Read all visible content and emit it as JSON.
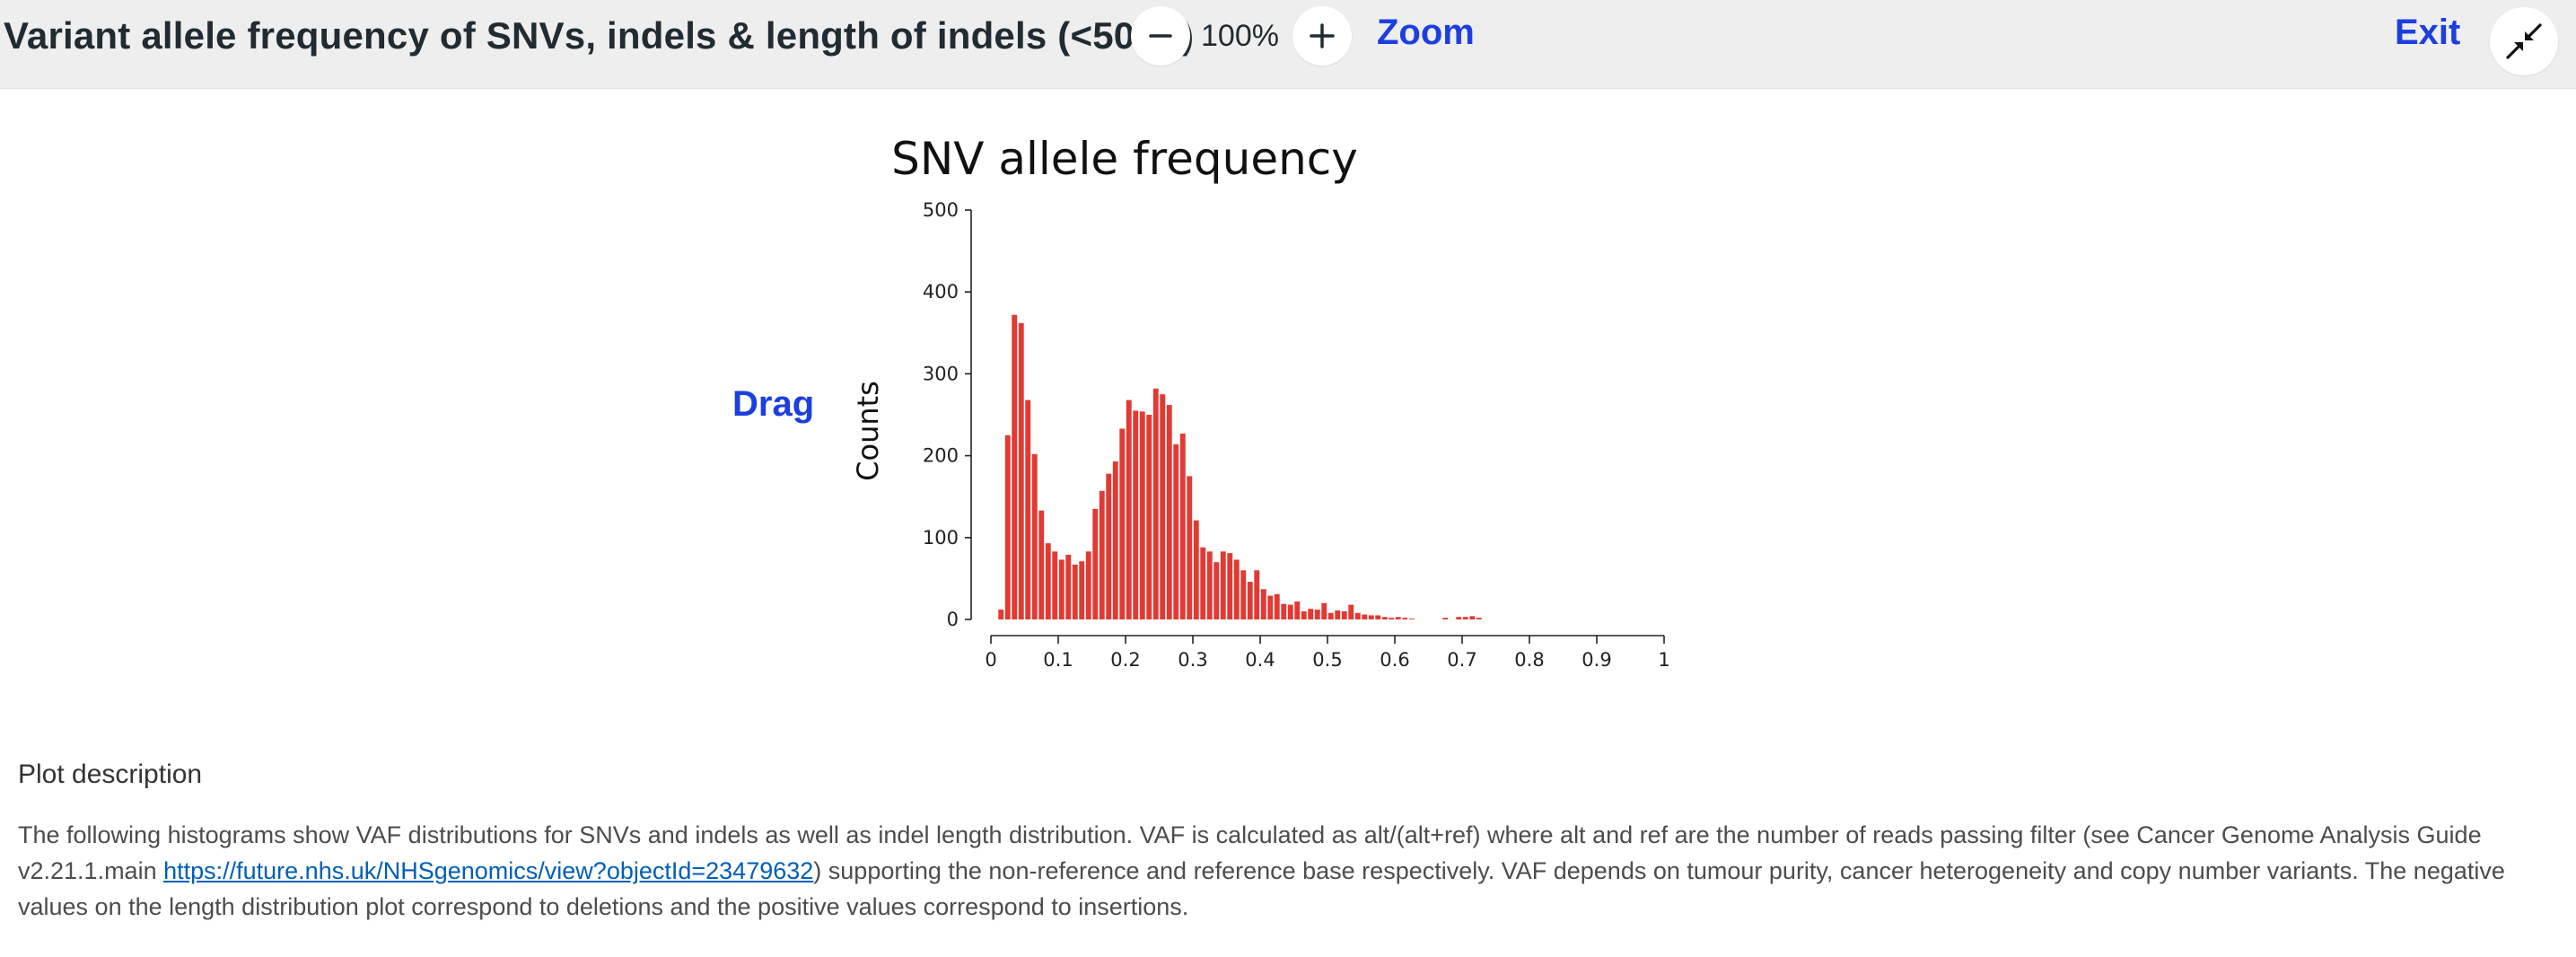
{
  "header": {
    "title": "Variant allele frequency of SNVs, indels & length of indels (<50bp)",
    "zoom_level": "100%",
    "zoom_label": "Zoom",
    "exit_label": "Exit",
    "zoom_out_icon": "minus-icon",
    "zoom_in_icon": "plus-icon",
    "exit_icon": "collapse-arrows-icon"
  },
  "drag_label": "Drag",
  "colors": {
    "accent": "#1d3fe0",
    "bar": "#e03a33",
    "topbar": "#eeeeee"
  },
  "chart_data": {
    "type": "bar",
    "title": "SNV allele frequency",
    "ylabel": "Counts",
    "xlabel": "",
    "xlim": [
      0,
      1
    ],
    "ylim": [
      0,
      500
    ],
    "xticks": [
      "0",
      "0.1",
      "0.2",
      "0.3",
      "0.4",
      "0.5",
      "0.6",
      "0.7",
      "0.8",
      "0.9",
      "1"
    ],
    "yticks": [
      "0",
      "100",
      "200",
      "300",
      "400",
      "500"
    ],
    "bin_width": 0.01,
    "x": [
      0.02,
      0.03,
      0.04,
      0.05,
      0.06,
      0.07,
      0.08,
      0.09,
      0.1,
      0.11,
      0.12,
      0.13,
      0.14,
      0.15,
      0.16,
      0.17,
      0.18,
      0.19,
      0.2,
      0.21,
      0.22,
      0.23,
      0.24,
      0.25,
      0.26,
      0.27,
      0.28,
      0.29,
      0.3,
      0.31,
      0.32,
      0.33,
      0.34,
      0.35,
      0.36,
      0.37,
      0.38,
      0.39,
      0.4,
      0.41,
      0.42,
      0.43,
      0.44,
      0.45,
      0.46,
      0.47,
      0.48,
      0.49,
      0.5,
      0.51,
      0.52,
      0.53,
      0.54,
      0.55,
      0.56,
      0.57,
      0.58,
      0.59,
      0.6,
      0.61,
      0.62,
      0.63,
      0.68,
      0.7,
      0.71,
      0.72,
      0.73
    ],
    "values": [
      12,
      225,
      372,
      362,
      268,
      202,
      133,
      93,
      83,
      73,
      79,
      67,
      71,
      83,
      135,
      157,
      178,
      193,
      233,
      268,
      255,
      254,
      250,
      282,
      275,
      262,
      214,
      227,
      175,
      121,
      88,
      83,
      70,
      83,
      81,
      73,
      60,
      46,
      60,
      37,
      29,
      31,
      19,
      18,
      22,
      10,
      13,
      12,
      20,
      8,
      11,
      10,
      18,
      8,
      6,
      5,
      5,
      3,
      2,
      3,
      2,
      1,
      2,
      3,
      3,
      4,
      2
    ]
  },
  "description": {
    "title": "Plot description",
    "text_before": "The following histograms show VAF distributions for SNVs and indels as well as indel length distribution. VAF is calculated as alt/(alt+ref) where alt and ref are the number of reads passing filter (see Cancer Genome Analysis Guide v2.21.1.main ",
    "link": "https://future.nhs.uk/NHSgenomics/view?objectId=23479632",
    "text_after": ") supporting the non-reference and reference base respectively. VAF depends on tumour purity, cancer heterogeneity and copy number variants. The negative values on the length distribution plot correspond to deletions and the positive values correspond to insertions."
  }
}
